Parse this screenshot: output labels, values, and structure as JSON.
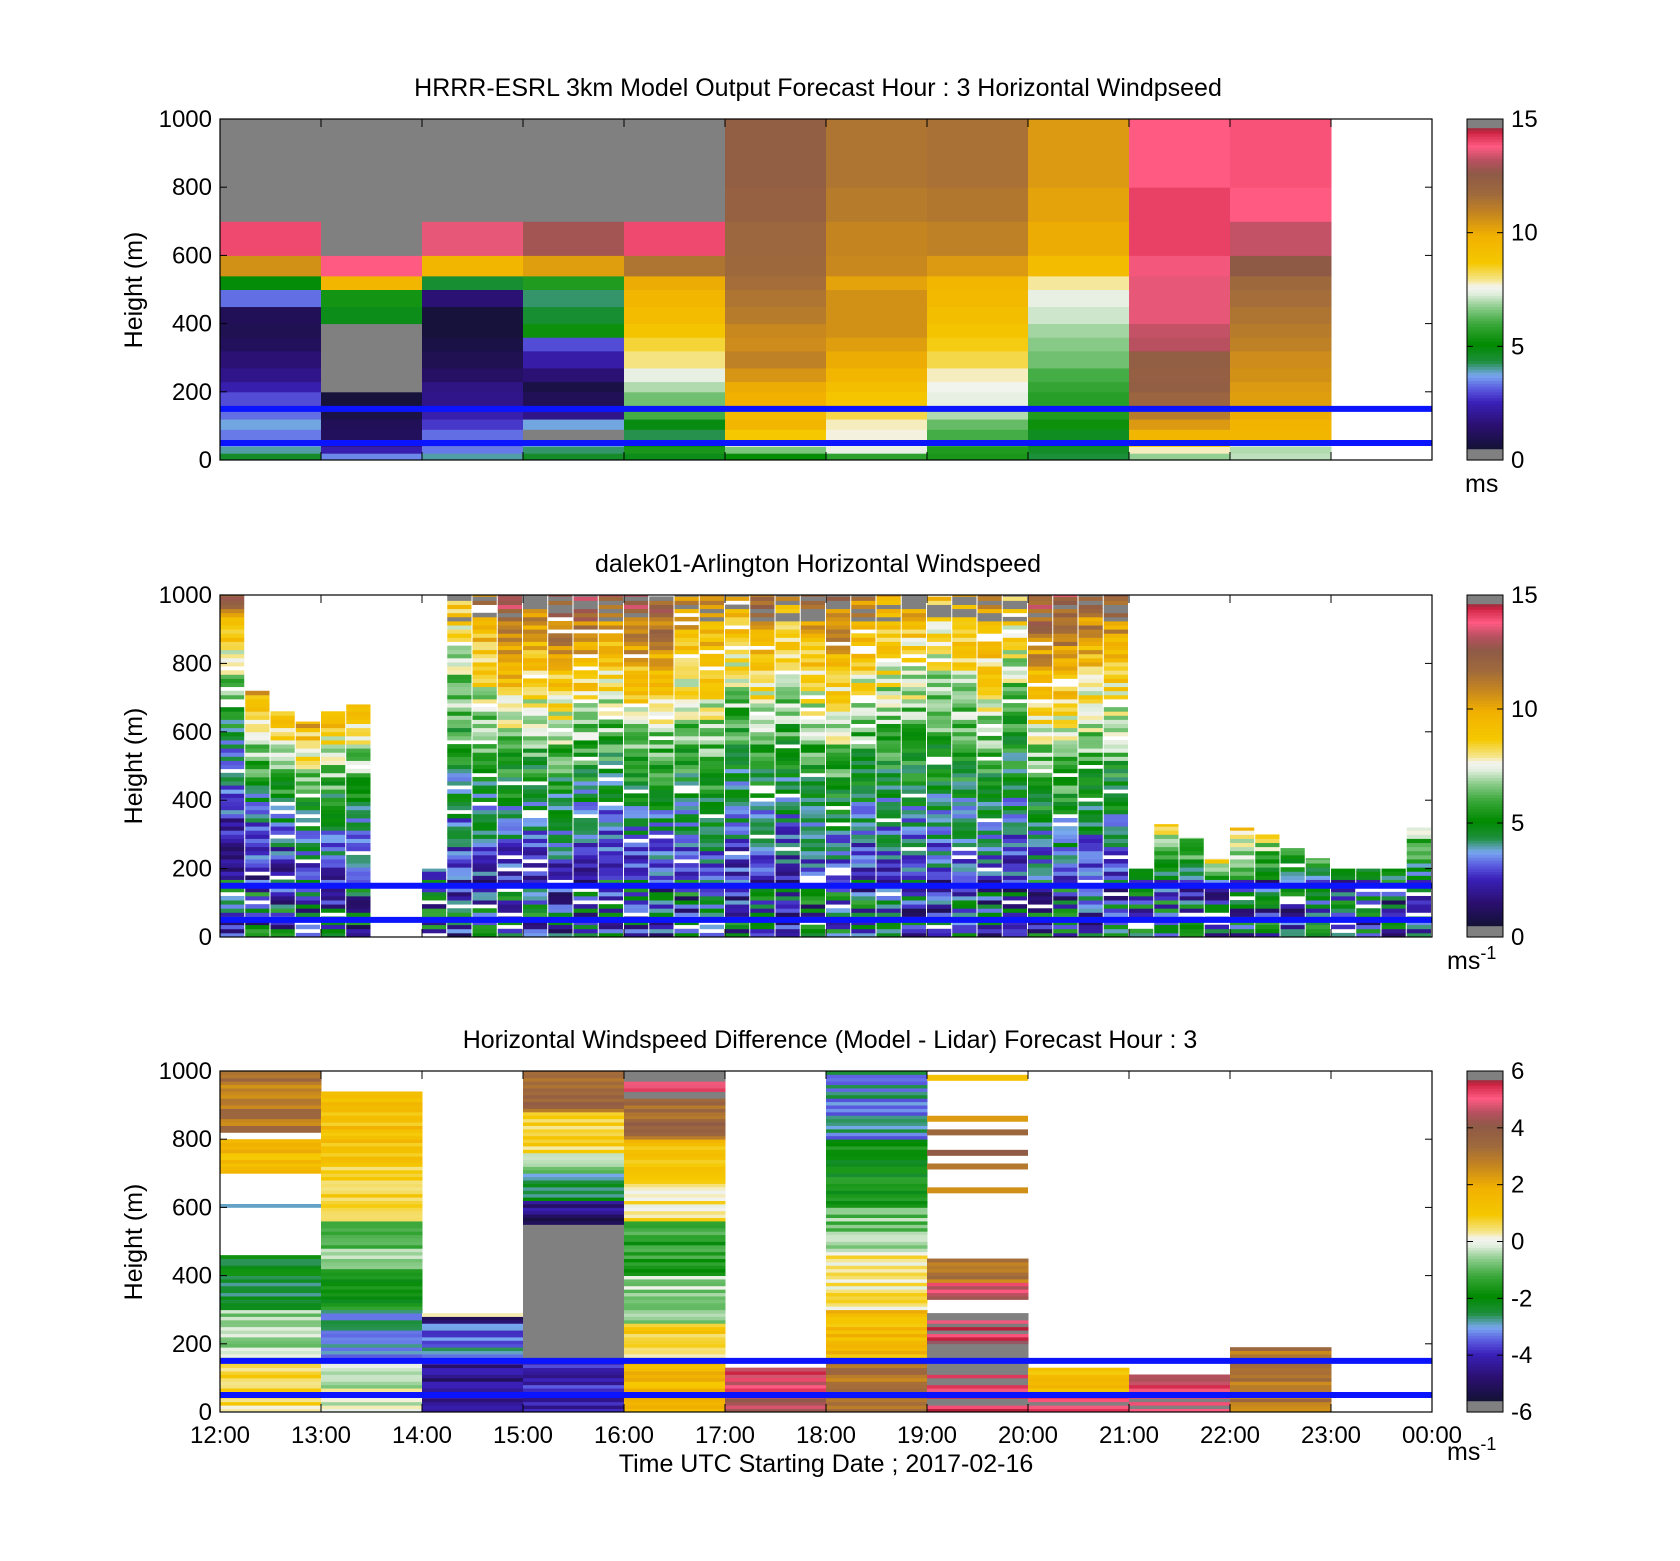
{
  "figure": {
    "xlabel": "Time UTC  Starting Date ; 2017-02-16",
    "x_ticks": [
      "12:00",
      "13:00",
      "14:00",
      "15:00",
      "16:00",
      "17:00",
      "18:00",
      "19:00",
      "20:00",
      "21:00",
      "22:00",
      "23:00",
      "00:00"
    ]
  },
  "chart_data": [
    {
      "type": "heatmap",
      "title": "HRRR-ESRL 3km Model Output   Forecast Hour : 3 Horizontal Windpseed",
      "xlabel": "",
      "ylabel": "Height (m)",
      "x_range_hours": [
        12,
        24
      ],
      "ylim": [
        0,
        1000
      ],
      "y_ticks": [
        "0",
        "200",
        "400",
        "600",
        "800",
        "1000"
      ],
      "colorbar": {
        "min": 0,
        "max": 15,
        "ticks": [
          "0",
          "5",
          "10",
          "15"
        ],
        "unit": "ms"
      },
      "reference_lines_m": [
        150,
        50
      ],
      "hour_start": [
        12,
        13,
        14,
        15,
        16,
        17,
        18,
        19,
        20,
        21,
        22
      ],
      "height_edges": [
        0,
        20,
        40,
        60,
        90,
        120,
        150,
        200,
        230,
        270,
        320,
        360,
        400,
        450,
        500,
        540,
        600,
        700,
        800,
        1000
      ],
      "values": [
        [
          4.6,
          3.5,
          4.0,
          4.6,
          4.8,
          5.2,
          5.8,
          5.5,
          4.4,
          6.8,
          7.1
        ],
        [
          4.0,
          2.4,
          3.4,
          4.2,
          5.5,
          6.6,
          7.4,
          5.6,
          4.6,
          7.8,
          7.0
        ],
        [
          3.6,
          1.8,
          3.3,
          3.8,
          5.2,
          7.4,
          7.6,
          5.9,
          4.9,
          8.8,
          7.3
        ],
        [
          3.4,
          1.2,
          3.3,
          0.4,
          4.3,
          8.7,
          7.7,
          6.1,
          4.7,
          9.6,
          9.6
        ],
        [
          3.8,
          1.1,
          2.8,
          3.8,
          4.9,
          9.6,
          7.8,
          6.4,
          5.3,
          10.4,
          9.7
        ],
        [
          3.3,
          0.8,
          2.4,
          1.9,
          6.1,
          9.4,
          8.3,
          7.0,
          5.6,
          11.2,
          10.0
        ],
        [
          3.0,
          0.6,
          1.9,
          1.1,
          6.5,
          9.9,
          8.8,
          7.4,
          5.7,
          12.0,
          10.3
        ],
        [
          2.4,
          0.4,
          1.8,
          0.8,
          7.0,
          10.0,
          9.2,
          7.6,
          5.9,
          12.4,
          10.4
        ],
        [
          1.9,
          0.3,
          1.3,
          1.6,
          7.4,
          10.5,
          9.6,
          7.8,
          6.1,
          12.3,
          10.6
        ],
        [
          1.6,
          0.3,
          1.0,
          2.3,
          8.0,
          11.0,
          10.0,
          8.3,
          6.5,
          12.4,
          10.7
        ],
        [
          1.2,
          0.3,
          0.8,
          3.0,
          8.4,
          10.7,
          10.3,
          8.6,
          6.7,
          13.2,
          11.0
        ],
        [
          1.0,
          0.4,
          0.6,
          5.3,
          8.9,
          10.8,
          10.6,
          8.9,
          6.9,
          13.3,
          11.2
        ],
        [
          1.1,
          4.8,
          0.6,
          4.5,
          9.3,
          11.2,
          10.6,
          9.2,
          7.2,
          13.6,
          11.4
        ],
        [
          3.3,
          5.4,
          1.6,
          4.2,
          9.6,
          11.4,
          10.6,
          9.5,
          7.4,
          13.6,
          11.6
        ],
        [
          5.0,
          9.6,
          4.5,
          5.6,
          10.0,
          11.6,
          10.2,
          9.6,
          7.9,
          13.6,
          11.8
        ],
        [
          10.6,
          13.8,
          9.6,
          10.3,
          11.4,
          11.8,
          10.8,
          10.4,
          9.3,
          13.7,
          12.6
        ],
        [
          14.0,
          0.4,
          13.6,
          12.9,
          14.0,
          11.9,
          10.9,
          11.0,
          10.0,
          14.1,
          13.3
        ],
        [
          0.3,
          0.3,
          0.3,
          0.3,
          0.3,
          12.2,
          11.2,
          11.3,
          10.2,
          14.1,
          13.8
        ],
        [
          0.3,
          0.3,
          0.3,
          0.3,
          0.3,
          12.4,
          11.4,
          11.5,
          10.4,
          13.8,
          13.9
        ]
      ]
    },
    {
      "type": "heatmap",
      "title": "dalek01-Arlington  Horizontal Windspeed",
      "xlabel": "",
      "ylabel": "Height (m)",
      "x_range_hours": [
        12,
        24
      ],
      "ylim": [
        0,
        1000
      ],
      "y_ticks": [
        "0",
        "200",
        "400",
        "600",
        "800",
        "1000"
      ],
      "colorbar": {
        "min": 0,
        "max": 15,
        "ticks": [
          "0",
          "5",
          "10",
          "15"
        ],
        "unit": "ms",
        "unit_superscript": "-1"
      },
      "reference_lines_m": [
        150,
        50
      ],
      "profile_times_h": [
        12.0,
        12.25,
        12.5,
        12.75,
        13.0,
        13.25,
        14.0,
        14.25,
        14.5,
        14.75,
        15.0,
        15.25,
        15.5,
        15.75,
        16.0,
        16.25,
        16.5,
        16.75,
        17.0,
        17.25,
        17.5,
        17.75,
        18.0,
        18.25,
        18.5,
        18.75,
        19.0,
        19.25,
        19.5,
        19.75,
        20.0,
        20.25,
        20.5,
        20.75,
        21.0,
        21.25,
        21.5,
        21.75,
        22.0,
        22.25,
        22.5,
        22.75,
        23.0,
        23.25,
        23.5,
        23.75
      ],
      "profile_width_h": 0.24,
      "profile_top_m": [
        1000,
        720,
        670,
        630,
        660,
        680,
        200,
        1000,
        1000,
        1000,
        1000,
        1000,
        1000,
        1000,
        1000,
        1000,
        1000,
        1000,
        1000,
        1000,
        1000,
        1000,
        1000,
        1000,
        1000,
        1000,
        1000,
        1000,
        1000,
        1000,
        1000,
        1000,
        1000,
        1000,
        200,
        330,
        290,
        230,
        320,
        310,
        260,
        230,
        200,
        200,
        200,
        320
      ],
      "profile_peak_ms": [
        12,
        10,
        10,
        10,
        10,
        10,
        3,
        9,
        11,
        13,
        12,
        13,
        13,
        12,
        13,
        13,
        11,
        11,
        10,
        12,
        10,
        11,
        12,
        11,
        10,
        10,
        9,
        10,
        11,
        9,
        13,
        13,
        12,
        12,
        5,
        8,
        7,
        8,
        9,
        8,
        7,
        6,
        5,
        5,
        5,
        7
      ],
      "profile_ref_h": [
        0.8,
        0.7,
        0.7,
        0.6,
        0.65,
        0.65,
        0.2,
        0.4,
        0.5,
        0.55,
        0.55,
        0.55,
        0.6,
        0.6,
        0.55,
        0.55,
        0.45,
        0.4,
        0.5,
        0.55,
        0.5,
        0.4,
        0.45,
        0.5,
        0.4,
        0.45,
        0.3,
        0.4,
        0.45,
        0.4,
        0.45,
        0.45,
        0.5,
        0.5,
        0.3,
        0.35,
        0.35,
        0.3,
        0.35,
        0.4,
        0.4,
        0.4,
        0.4,
        0.4,
        0.4,
        0.35
      ],
      "unit_note": "profile_peak_ms is the approximate windspeed at the top of each profile (m/s); profile_ref_h is the approximate fraction of the profile height where speeds exceed 7 m/s"
    },
    {
      "type": "heatmap",
      "title": "Horizontal Windspeed Difference (Model - Lidar) Forecast Hour : 3",
      "xlabel": "Time UTC  Starting Date ; 2017-02-16",
      "ylabel": "Height (m)",
      "x_range_hours": [
        12,
        24
      ],
      "ylim": [
        0,
        1000
      ],
      "y_ticks": [
        "0",
        "200",
        "400",
        "600",
        "800",
        "1000"
      ],
      "colorbar": {
        "min": -6,
        "max": 6,
        "ticks": [
          "-6",
          "-4",
          "-2",
          "0",
          "2",
          "4",
          "6"
        ],
        "unit": "ms",
        "unit_superscript": "-1"
      },
      "reference_lines_m": [
        150,
        50
      ],
      "hour_start": [
        12,
        13,
        14,
        15,
        16,
        17,
        18,
        19,
        20,
        21,
        22
      ],
      "segments": [
        [
          [
            0,
            150,
            0.5
          ],
          [
            150,
            300,
            -0.5
          ],
          [
            300,
            460,
            -2.2
          ],
          [
            460,
            600,
            null
          ],
          [
            600,
            610,
            -2.5
          ],
          [
            610,
            700,
            null
          ],
          [
            700,
            800,
            1.5
          ],
          [
            800,
            820,
            null
          ],
          [
            820,
            1000,
            3.0
          ]
        ],
        [
          [
            0,
            100,
            -0.2
          ],
          [
            100,
            150,
            -0.5
          ],
          [
            150,
            300,
            -3.0
          ],
          [
            300,
            420,
            -1.8
          ],
          [
            420,
            560,
            -0.8
          ],
          [
            560,
            760,
            1.0
          ],
          [
            760,
            940,
            1.3
          ]
        ],
        [
          [
            0,
            150,
            -4.5
          ],
          [
            150,
            200,
            -3.0
          ],
          [
            200,
            260,
            -3.3
          ],
          [
            260,
            280,
            -5.0
          ],
          [
            280,
            290,
            0.3
          ]
        ],
        [
          [
            0,
            150,
            -4.0
          ],
          [
            150,
            550,
            -6.5
          ],
          [
            550,
            580,
            -5.5
          ],
          [
            580,
            620,
            -4.5
          ],
          [
            620,
            700,
            -2.5
          ],
          [
            700,
            760,
            -0.5
          ],
          [
            760,
            880,
            0.8
          ],
          [
            880,
            1000,
            3.5
          ]
        ],
        [
          [
            0,
            150,
            1.5
          ],
          [
            150,
            260,
            0.8
          ],
          [
            260,
            400,
            -0.5
          ],
          [
            400,
            560,
            -1.5
          ],
          [
            560,
            700,
            0.5
          ],
          [
            700,
            800,
            1.3
          ],
          [
            800,
            920,
            3.5
          ],
          [
            920,
            1000,
            5.5
          ]
        ],
        [
          [
            0,
            40,
            4.5
          ],
          [
            40,
            130,
            5.0
          ]
        ],
        [
          [
            0,
            150,
            3.0
          ],
          [
            150,
            300,
            1.5
          ],
          [
            300,
            470,
            0.3
          ],
          [
            470,
            600,
            -0.8
          ],
          [
            600,
            800,
            -1.8
          ],
          [
            800,
            1000,
            -3.0
          ]
        ],
        [
          [
            0,
            150,
            5.5
          ],
          [
            150,
            200,
            -6.5
          ],
          [
            200,
            290,
            5.5
          ],
          [
            290,
            330,
            null
          ],
          [
            330,
            380,
            4.8
          ],
          [
            380,
            450,
            3.0
          ],
          [
            450,
            950,
            null
          ]
        ],
        [
          [
            0,
            60,
            5.5
          ],
          [
            60,
            130,
            1.5
          ]
        ],
        [
          [
            0,
            60,
            5.5
          ],
          [
            60,
            110,
            5.0
          ]
        ],
        [
          [
            0,
            150,
            3.0
          ],
          [
            150,
            190,
            3.0
          ]
        ]
      ],
      "thin_lines_col8": [
        [
          980,
          1.2
        ],
        [
          860,
          2.3
        ],
        [
          820,
          3.5
        ],
        [
          760,
          4.0
        ],
        [
          720,
          3.0
        ],
        [
          650,
          2.5
        ]
      ]
    }
  ]
}
